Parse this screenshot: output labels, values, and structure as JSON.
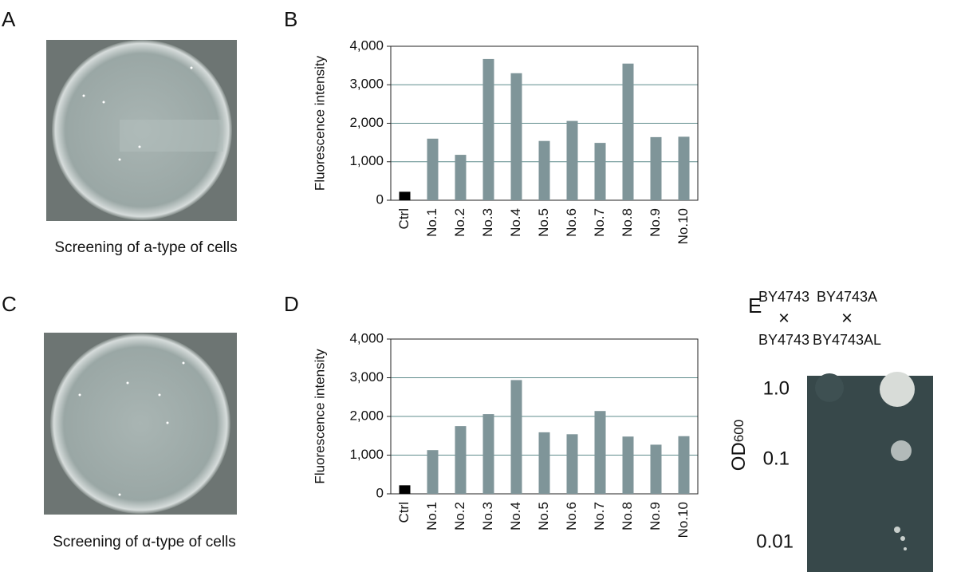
{
  "panel_labels": [
    "A",
    "B",
    "C",
    "D",
    "E"
  ],
  "captions": [
    "Screening of a-type of cells",
    "Screening of α-type of cells"
  ],
  "panel_e": {
    "left_top": "BY4743",
    "left_cross": "×",
    "left_bottom": "BY4743",
    "right_top": "BY4743A",
    "right_cross": "×",
    "right_bottom": "BY4743AL",
    "rows": [
      "1.0",
      "0.1",
      "0.01"
    ],
    "axis_label": "OD",
    "axis_subscript": "600"
  },
  "chart_data": [
    {
      "type": "bar",
      "y_label": "Fluorescence intensity",
      "categories": [
        "Ctrl",
        "No.1",
        "No.2",
        "No.3",
        "No.4",
        "No.5",
        "No.6",
        "No.7",
        "No.8",
        "No.9",
        "No.10"
      ],
      "values": [
        220,
        1600,
        1180,
        3670,
        3300,
        1540,
        2060,
        1490,
        3550,
        1640,
        1650
      ],
      "colors": [
        "#000000",
        "#7f9599",
        "#7f9599",
        "#7f9599",
        "#7f9599",
        "#7f9599",
        "#7f9599",
        "#7f9599",
        "#7f9599",
        "#7f9599",
        "#7f9599"
      ],
      "ylim": [
        0,
        4000
      ],
      "yticks": [
        0,
        {
          "value": 1000,
          "label": "1,000"
        },
        {
          "value": 2000,
          "label": "2,000"
        },
        {
          "value": 3000,
          "label": "3,000"
        },
        {
          "value": 4000,
          "label": "4,000"
        }
      ],
      "grid": true
    },
    {
      "type": "bar",
      "y_label": "Fluorescence intensity",
      "categories": [
        "Ctrl",
        "No.1",
        "No.2",
        "No.3",
        "No.4",
        "No.5",
        "No.6",
        "No.7",
        "No.8",
        "No.9",
        "No.10"
      ],
      "values": [
        220,
        1130,
        1750,
        2060,
        2940,
        1590,
        1540,
        2140,
        1480,
        1270,
        1490
      ],
      "colors": [
        "#000000",
        "#7f9599",
        "#7f9599",
        "#7f9599",
        "#7f9599",
        "#7f9599",
        "#7f9599",
        "#7f9599",
        "#7f9599",
        "#7f9599",
        "#7f9599"
      ],
      "ylim": [
        0,
        4000
      ],
      "yticks": [
        0,
        {
          "value": 1000,
          "label": "1,000"
        },
        {
          "value": 2000,
          "label": "2,000"
        },
        {
          "value": 3000,
          "label": "3,000"
        },
        {
          "value": 4000,
          "label": "4,000"
        }
      ],
      "grid": true
    }
  ]
}
